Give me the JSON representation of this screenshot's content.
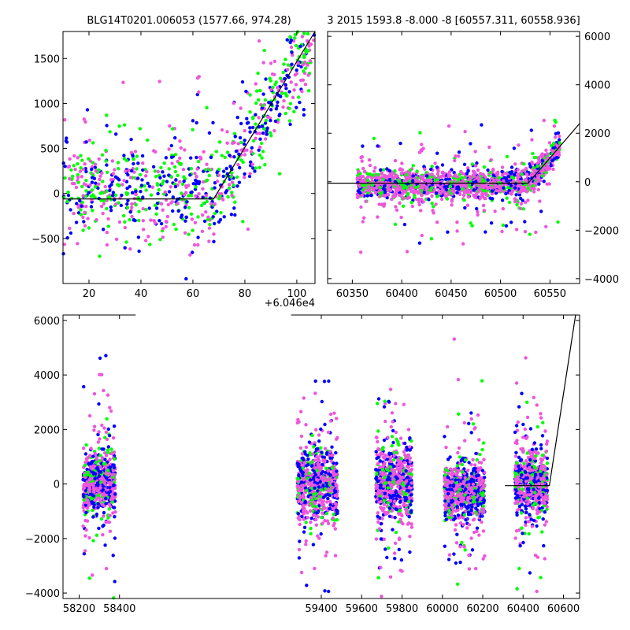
{
  "colors": {
    "series_green": "#00ff00",
    "series_blue": "#0000ff",
    "series_pink": "#ee55dd",
    "fit_line": "#000000"
  },
  "chart_data": [
    {
      "id": "top-left",
      "type": "scatter",
      "title": "BLG14T0201.006053 (1577.66, 974.28)",
      "xlim": [
        10,
        107
      ],
      "ylim": [
        -1000,
        1800
      ],
      "x_ticks": [
        20,
        40,
        60,
        80,
        100
      ],
      "y_ticks": [
        -500,
        0,
        500,
        1000,
        1500
      ],
      "y_tick_labels": [
        "−500",
        "0",
        "500",
        "1000",
        "1500"
      ],
      "x_offset_label": "+6.046e4",
      "fit_line": {
        "x": [
          10,
          68,
          107
        ],
        "y": [
          -60,
          -60,
          1800
        ]
      },
      "grid": false
    },
    {
      "id": "top-right",
      "type": "scatter",
      "title": "3 2015 1593.8 -8.000 -8 [60557.311, 60558.936]",
      "xlim": [
        60325,
        60580
      ],
      "ylim": [
        -4200,
        6200
      ],
      "x_ticks": [
        60350,
        60400,
        60450,
        60500,
        60550
      ],
      "y_ticks": [
        -4000,
        -2000,
        0,
        2000,
        4000,
        6000
      ],
      "y_tick_labels": [
        "−4000",
        "−2000",
        "0",
        "2000",
        "4000",
        "6000"
      ],
      "y_axis_side": "right",
      "fit_line": {
        "x": [
          60325,
          60528,
          60580
        ],
        "y": [
          -60,
          -60,
          2400
        ]
      },
      "grid": false
    },
    {
      "id": "bottom",
      "type": "scatter",
      "xlim": [
        58120,
        60680
      ],
      "ylim": [
        -4200,
        6200
      ],
      "x_ticks": [
        58200,
        58400,
        59400,
        59600,
        59800,
        60000,
        60200,
        60400,
        60600
      ],
      "y_ticks": [
        -4000,
        -2000,
        0,
        2000,
        4000,
        6000
      ],
      "y_tick_labels": [
        "−4000",
        "−2000",
        "0",
        "2000",
        "4000",
        "6000"
      ],
      "axis_break": [
        58480,
        59250
      ],
      "fit_line": {
        "x": [
          60310,
          60530,
          60660
        ],
        "y": [
          -60,
          -60,
          6200
        ]
      },
      "seasons": [
        {
          "center": 58300,
          "spread": 80,
          "sigma": 500
        },
        {
          "center": 59380,
          "spread": 100,
          "sigma": 600
        },
        {
          "center": 59760,
          "spread": 90,
          "sigma": 600
        },
        {
          "center": 60110,
          "spread": 100,
          "sigma": 500
        },
        {
          "center": 60440,
          "spread": 80,
          "sigma": 500
        }
      ],
      "grid": false
    }
  ]
}
